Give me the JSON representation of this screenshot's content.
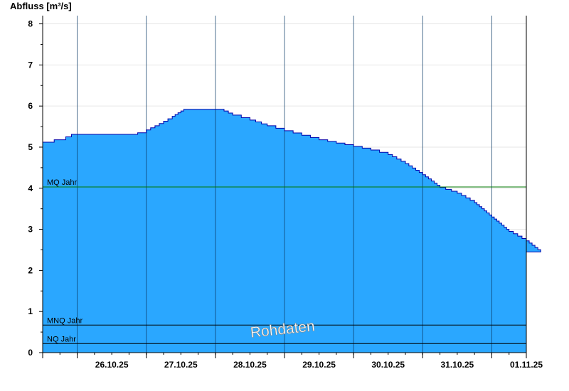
{
  "chart_data": {
    "type": "area",
    "ylabel": "Abfluss [m³/s]",
    "ylim": [
      0,
      8.2
    ],
    "yticks": [
      0,
      1,
      2,
      3,
      4,
      5,
      6,
      7,
      8
    ],
    "x_range_days": [
      "25.10.25 12:00",
      "01.11.25 12:00"
    ],
    "x_tick_labels": [
      "26.10.25",
      "27.10.25",
      "28.10.25",
      "29.10.25",
      "30.10.25",
      "31.10.25",
      "01.11.25"
    ],
    "grid": "vertical midnight lines",
    "watermark": "Rohdaten",
    "series": [
      {
        "color": "#2aa7ff",
        "line_color": "#0000aa",
        "points": [
          [
            "25.10.25 12:00",
            5.12
          ],
          [
            "25.10.25 16:00",
            5.18
          ],
          [
            "25.10.25 20:00",
            5.25
          ],
          [
            "25.10.25 22:00",
            5.31
          ],
          [
            "26.10.25 06:00",
            5.31
          ],
          [
            "26.10.25 12:00",
            5.31
          ],
          [
            "26.10.25 18:00",
            5.31
          ],
          [
            "26.10.25 21:00",
            5.35
          ],
          [
            "27.10.25 00:00",
            5.42
          ],
          [
            "27.10.25 03:00",
            5.52
          ],
          [
            "27.10.25 06:00",
            5.63
          ],
          [
            "27.10.25 09:00",
            5.75
          ],
          [
            "27.10.25 12:00",
            5.88
          ],
          [
            "27.10.25 13:00",
            5.92
          ],
          [
            "27.10.25 18:00",
            5.92
          ],
          [
            "28.10.25 00:00",
            5.92
          ],
          [
            "28.10.25 03:00",
            5.88
          ],
          [
            "28.10.25 06:00",
            5.78
          ],
          [
            "28.10.25 12:00",
            5.66
          ],
          [
            "28.10.25 18:00",
            5.52
          ],
          [
            "29.10.25 00:00",
            5.4
          ],
          [
            "29.10.25 06:00",
            5.29
          ],
          [
            "29.10.25 12:00",
            5.18
          ],
          [
            "29.10.25 18:00",
            5.1
          ],
          [
            "30.10.25 00:00",
            5.02
          ],
          [
            "30.10.25 06:00",
            4.93
          ],
          [
            "30.10.25 12:00",
            4.82
          ],
          [
            "30.10.25 18:00",
            4.6
          ],
          [
            "31.10.25 00:00",
            4.33
          ],
          [
            "31.10.25 06:00",
            4.02
          ],
          [
            "31.10.25 12:00",
            3.88
          ],
          [
            "31.10.25 18:00",
            3.65
          ],
          [
            "01.11.25 00:00",
            3.3
          ],
          [
            "01.11.25 06:00",
            2.95
          ],
          [
            "01.11.25 12:00",
            2.72
          ],
          [
            "01.11.25 17:00",
            2.45
          ]
        ]
      }
    ],
    "reference_lines": [
      {
        "label": "MQ Jahr",
        "value": 4.03,
        "color": "#007700"
      },
      {
        "label": "MNQ Jahr",
        "value": 0.67,
        "color": "#000000"
      },
      {
        "label": "NQ Jahr",
        "value": 0.22,
        "color": "#000000"
      }
    ]
  }
}
